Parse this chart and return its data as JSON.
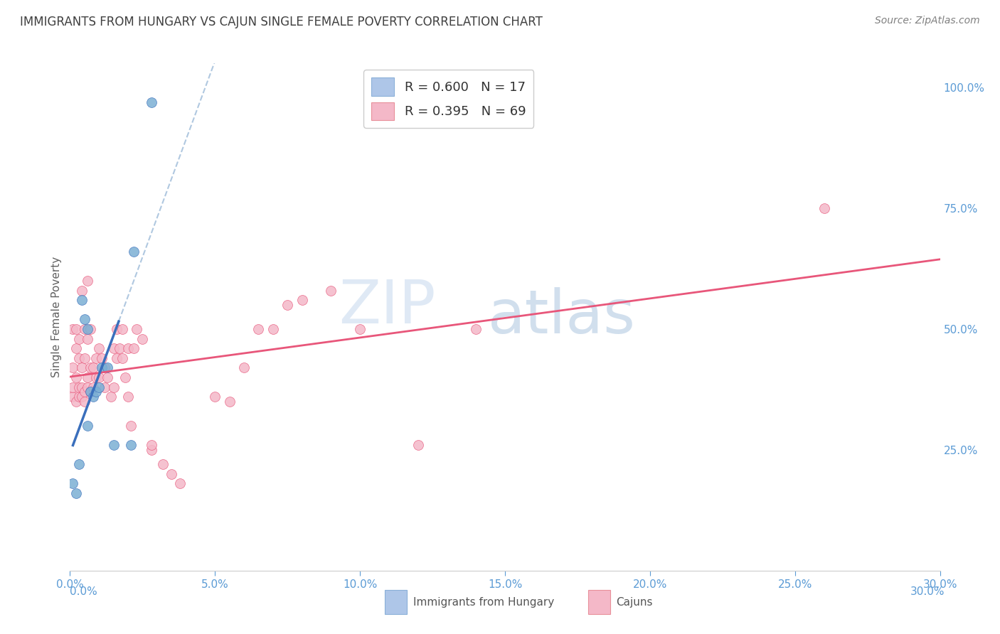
{
  "title": "IMMIGRANTS FROM HUNGARY VS CAJUN SINGLE FEMALE POVERTY CORRELATION CHART",
  "source": "Source: ZipAtlas.com",
  "ylabel": "Single Female Poverty",
  "legend_hungary": {
    "R": "0.600",
    "N": "17",
    "color": "#aec6e8"
  },
  "legend_cajun": {
    "R": "0.395",
    "N": "69",
    "color": "#f4b8c8"
  },
  "hungary_scatter_color": "#7bafd4",
  "cajun_scatter_color": "#f4b8c8",
  "hungary_line_color": "#3a6fbc",
  "cajun_line_color": "#e8567a",
  "dash_color": "#b0c8e0",
  "watermark_color": "#c8d8f0",
  "hungary_x": [
    0.001,
    0.002,
    0.003,
    0.004,
    0.005,
    0.006,
    0.006,
    0.007,
    0.008,
    0.009,
    0.01,
    0.011,
    0.013,
    0.015,
    0.021,
    0.022,
    0.028
  ],
  "hungary_y": [
    0.18,
    0.16,
    0.22,
    0.56,
    0.52,
    0.5,
    0.3,
    0.37,
    0.36,
    0.37,
    0.38,
    0.42,
    0.42,
    0.26,
    0.26,
    0.66,
    0.97
  ],
  "cajun_x": [
    0.001,
    0.001,
    0.001,
    0.001,
    0.002,
    0.002,
    0.002,
    0.002,
    0.003,
    0.003,
    0.003,
    0.003,
    0.004,
    0.004,
    0.004,
    0.004,
    0.005,
    0.005,
    0.005,
    0.005,
    0.006,
    0.006,
    0.006,
    0.006,
    0.007,
    0.007,
    0.007,
    0.008,
    0.008,
    0.009,
    0.009,
    0.01,
    0.01,
    0.011,
    0.012,
    0.012,
    0.013,
    0.014,
    0.015,
    0.015,
    0.016,
    0.016,
    0.017,
    0.018,
    0.018,
    0.019,
    0.02,
    0.02,
    0.021,
    0.022,
    0.023,
    0.025,
    0.028,
    0.028,
    0.032,
    0.035,
    0.038,
    0.05,
    0.055,
    0.06,
    0.065,
    0.07,
    0.075,
    0.08,
    0.09,
    0.1,
    0.12,
    0.14,
    0.26
  ],
  "cajun_y": [
    0.36,
    0.38,
    0.42,
    0.5,
    0.35,
    0.4,
    0.46,
    0.5,
    0.36,
    0.38,
    0.44,
    0.48,
    0.36,
    0.38,
    0.42,
    0.58,
    0.35,
    0.37,
    0.44,
    0.5,
    0.38,
    0.4,
    0.48,
    0.6,
    0.37,
    0.42,
    0.5,
    0.38,
    0.42,
    0.4,
    0.44,
    0.4,
    0.46,
    0.44,
    0.38,
    0.42,
    0.4,
    0.36,
    0.38,
    0.46,
    0.44,
    0.5,
    0.46,
    0.44,
    0.5,
    0.4,
    0.36,
    0.46,
    0.3,
    0.46,
    0.5,
    0.48,
    0.25,
    0.26,
    0.22,
    0.2,
    0.18,
    0.36,
    0.35,
    0.42,
    0.5,
    0.5,
    0.55,
    0.56,
    0.58,
    0.5,
    0.26,
    0.5,
    0.75
  ],
  "xlim": [
    0.0,
    0.3
  ],
  "ylim": [
    0.0,
    1.05
  ],
  "ytick_positions": [
    0.25,
    0.5,
    0.75,
    1.0
  ],
  "ytick_labels": [
    "25.0%",
    "50.0%",
    "75.0%",
    "100.0%"
  ],
  "xtick_positions": [
    0.0,
    0.05,
    0.1,
    0.15,
    0.2,
    0.25,
    0.3
  ],
  "xtick_labels": [
    "0.0%",
    "5.0%",
    "10.0%",
    "15.0%",
    "20.0%",
    "25.0%",
    "30.0%"
  ],
  "background_color": "#ffffff",
  "grid_color": "#e0e0e0",
  "tick_color": "#5b9bd5",
  "title_color": "#404040",
  "source_color": "#808080",
  "ylabel_color": "#606060"
}
